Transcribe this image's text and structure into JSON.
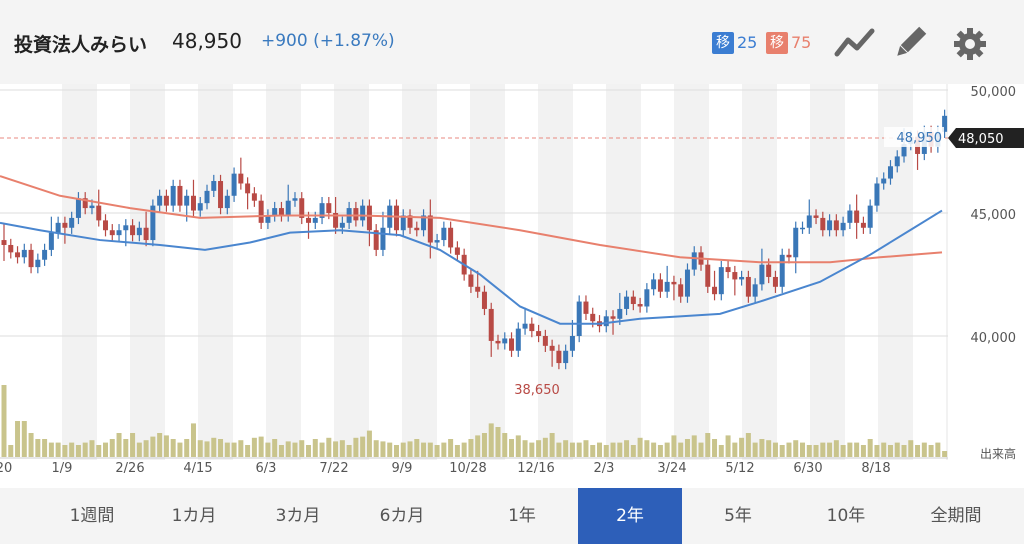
{
  "header": {
    "title": "投資法人みらい",
    "price": "48,950",
    "change": "+900 (+1.87%)",
    "ma_short": {
      "badge": "移",
      "value": "25",
      "color": "#3b7dd2"
    },
    "ma_long": {
      "badge": "移",
      "value": "75",
      "color": "#e8806d"
    },
    "icons": [
      "line-chart-icon",
      "pencil-icon",
      "gear-icon"
    ]
  },
  "periods": [
    "1週間",
    "1カ月",
    "3カ月",
    "6カ月",
    "1年",
    "2年",
    "5年",
    "10年",
    "全期間"
  ],
  "active_period": "2年",
  "chart_data": {
    "type": "candlestick",
    "title": "",
    "xlabel": "",
    "ylabel": "",
    "ylim": [
      36000,
      50400
    ],
    "y_ticks": [
      {
        "value": 50000,
        "label": "50,000"
      },
      {
        "value": 45000,
        "label": "45,000"
      },
      {
        "value": 40000,
        "label": "40,000"
      }
    ],
    "x_ticks": [
      "20",
      "1/9",
      "2/26",
      "4/15",
      "6/3",
      "7/22",
      "9/9",
      "10/28",
      "12/16",
      "2/3",
      "3/24",
      "5/12",
      "6/30",
      "8/18"
    ],
    "volume_label": "出来高",
    "last_price_label": "48,050",
    "last_price": 48050,
    "current_label": "48,950",
    "low_label": "38,650",
    "low_value": 38650,
    "colors": {
      "up": "#3a77b7",
      "down": "#b84a45",
      "ma25": "#4a86cf",
      "ma75": "#e8806d",
      "volume": "#c9c48c"
    },
    "candle_closes": [
      43700,
      43400,
      43200,
      43500,
      42800,
      43100,
      43500,
      44200,
      44600,
      44400,
      44800,
      45600,
      45200,
      45300,
      44700,
      44300,
      44100,
      44300,
      44500,
      44100,
      44400,
      43900,
      45300,
      45700,
      45300,
      46100,
      45300,
      45700,
      45100,
      45400,
      45900,
      46300,
      45200,
      45700,
      46600,
      46200,
      45800,
      45500,
      44600,
      44900,
      45200,
      44900,
      45500,
      45600,
      44800,
      44600,
      44800,
      45400,
      45000,
      44400,
      44600,
      45200,
      44700,
      45300,
      44300,
      43500,
      44400,
      45300,
      44300,
      44900,
      44400,
      44300,
      44900,
      43800,
      43900,
      44400,
      43600,
      43300,
      42500,
      42000,
      41800,
      41100,
      39800,
      39700,
      39900,
      39400,
      40300,
      40500,
      40200,
      40000,
      39600,
      39400,
      38900,
      39400,
      40000,
      41400,
      40900,
      40600,
      40400,
      40800,
      40700,
      41100,
      41600,
      41300,
      41200,
      41900,
      42300,
      41800,
      42200,
      42100,
      41600,
      42700,
      43400,
      42900,
      42000,
      41700,
      42800,
      42600,
      42300,
      42400,
      41600,
      42100,
      42900,
      42400,
      42000,
      43300,
      43200,
      44400,
      44400,
      44900,
      44800,
      44300,
      44700,
      44300,
      44600,
      45100,
      44600,
      44400,
      45300,
      46200,
      46400,
      46900,
      47300,
      47800,
      48100,
      47400,
      48300,
      47700,
      48300,
      48950
    ],
    "volume": [
      0.6,
      0.1,
      0.3,
      0.3,
      0.2,
      0.15,
      0.15,
      0.12,
      0.12,
      0.1,
      0.12,
      0.1,
      0.12,
      0.14,
      0.1,
      0.12,
      0.15,
      0.2,
      0.15,
      0.2,
      0.12,
      0.14,
      0.17,
      0.2,
      0.18,
      0.15,
      0.12,
      0.15,
      0.28,
      0.14,
      0.13,
      0.16,
      0.15,
      0.12,
      0.12,
      0.14,
      0.1,
      0.16,
      0.17,
      0.12,
      0.15,
      0.1,
      0.13,
      0.12,
      0.14,
      0.1,
      0.15,
      0.12,
      0.16,
      0.13,
      0.14,
      0.1,
      0.16,
      0.17,
      0.22,
      0.14,
      0.13,
      0.12,
      0.1,
      0.12,
      0.13,
      0.15,
      0.12,
      0.12,
      0.1,
      0.12,
      0.15,
      0.1,
      0.12,
      0.15,
      0.18,
      0.2,
      0.28,
      0.25,
      0.2,
      0.15,
      0.18,
      0.14,
      0.12,
      0.14,
      0.16,
      0.2,
      0.12,
      0.14,
      0.12,
      0.12,
      0.14,
      0.1,
      0.12,
      0.1,
      0.12,
      0.12,
      0.14,
      0.1,
      0.16,
      0.14,
      0.12,
      0.1,
      0.12,
      0.18,
      0.12,
      0.15,
      0.18,
      0.12,
      0.2,
      0.15,
      0.1,
      0.18,
      0.12,
      0.16,
      0.2,
      0.12,
      0.15,
      0.14,
      0.12,
      0.1,
      0.12,
      0.14,
      0.12,
      0.1,
      0.1,
      0.12,
      0.12,
      0.14,
      0.1,
      0.12,
      0.12,
      0.1,
      0.15,
      0.1,
      0.12,
      0.1,
      0.12,
      0.1,
      0.14,
      0.1,
      0.12,
      0.1,
      0.12,
      0.05
    ],
    "ma25": [
      [
        0,
        44600
      ],
      [
        40,
        44300
      ],
      [
        100,
        43900
      ],
      [
        160,
        43700
      ],
      [
        205,
        43500
      ],
      [
        250,
        43800
      ],
      [
        290,
        44200
      ],
      [
        340,
        44300
      ],
      [
        400,
        44100
      ],
      [
        440,
        43500
      ],
      [
        480,
        42500
      ],
      [
        520,
        41200
      ],
      [
        560,
        40500
      ],
      [
        600,
        40500
      ],
      [
        640,
        40700
      ],
      [
        680,
        40800
      ],
      [
        720,
        40900
      ],
      [
        760,
        41400
      ],
      [
        820,
        42200
      ],
      [
        870,
        43300
      ],
      [
        910,
        44300
      ],
      [
        942,
        45100
      ]
    ],
    "ma75": [
      [
        0,
        46500
      ],
      [
        60,
        45700
      ],
      [
        130,
        45200
      ],
      [
        200,
        44800
      ],
      [
        280,
        44900
      ],
      [
        360,
        44900
      ],
      [
        440,
        44800
      ],
      [
        520,
        44300
      ],
      [
        600,
        43700
      ],
      [
        680,
        43200
      ],
      [
        760,
        43000
      ],
      [
        830,
        43000
      ],
      [
        880,
        43200
      ],
      [
        942,
        43400
      ]
    ]
  }
}
